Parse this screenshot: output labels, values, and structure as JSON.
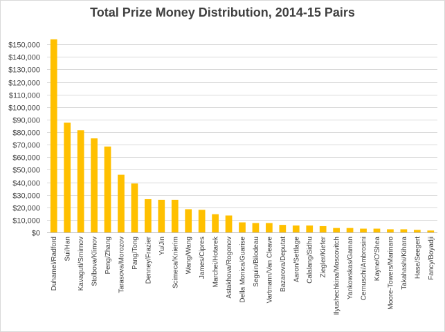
{
  "chart_data": {
    "type": "bar",
    "title": "Total Prize Money Distribution, 2014-15 Pairs",
    "xlabel": "",
    "ylabel": "",
    "ylim": [
      0,
      160000
    ],
    "ytick_values": [
      0,
      10000,
      20000,
      30000,
      40000,
      50000,
      60000,
      70000,
      80000,
      90000,
      100000,
      110000,
      120000,
      130000,
      140000,
      150000
    ],
    "ytick_labels": [
      "$0",
      "$10,000",
      "$20,000",
      "$30,000",
      "$40,000",
      "$50,000",
      "$60,000",
      "$70,000",
      "$80,000",
      "$90,000",
      "$100,000",
      "$110,000",
      "$120,000",
      "$130,000",
      "$140,000",
      "$150,000"
    ],
    "grid": true,
    "legend": false,
    "bar_color": "#ffc000",
    "categories": [
      "Duhamel/Radford",
      "Sui/Han",
      "Kavaguti/Smirnov",
      "Stolbova/Klimov",
      "Peng/Zhang",
      "Tarasova/Morozov",
      "Pang/Tong",
      "Denney/Frazier",
      "Yu/Jin",
      "Scimeca/Knierim",
      "Wang/Wang",
      "James/Cipres",
      "Marchei/Hotarek",
      "Astakhova/Rogonov",
      "Della Monica/Guarise",
      "Seguin/Bilodeau",
      "Vartmann/Van Cleave",
      "Bazarova/Deputat",
      "Aaron/Settlage",
      "Calalang/Sidhu",
      "Ziegler/Kiefer",
      "Ilyushechkina/Moscovitch",
      "Yankowskas/Gaman",
      "Cernuschi/Ambrosini",
      "Kayne/O'Shea",
      "Moore-Towers/Marinaro",
      "Takahashi/Kihara",
      "Hase/Seegert",
      "Fancy/Boyadji"
    ],
    "values": [
      154000,
      87500,
      81500,
      75000,
      68500,
      46000,
      39000,
      26500,
      26000,
      26000,
      18500,
      18000,
      14500,
      13500,
      8000,
      7500,
      7500,
      6000,
      5500,
      5500,
      5000,
      3500,
      3500,
      3000,
      3000,
      2500,
      2500,
      2000,
      1500
    ]
  }
}
